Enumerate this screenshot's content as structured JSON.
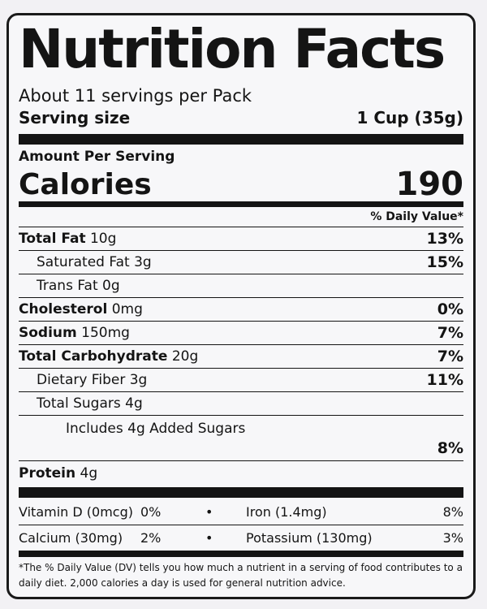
{
  "title": "Nutrition Facts",
  "servings_per_container": "About 11 servings per Pack",
  "serving_size": {
    "label": "Serving size",
    "value": "1 Cup (35g)"
  },
  "amount_per_serving": "Amount Per Serving",
  "calories": {
    "label": "Calories",
    "value": "190"
  },
  "daily_value_header": "% Daily Value*",
  "nutrients": [
    {
      "name": "Total Fat",
      "amount": "10g",
      "dv": "13%"
    },
    {
      "name": "Saturated Fat",
      "amount": "3g",
      "dv": "15%"
    },
    {
      "name": "Trans Fat",
      "amount": "0g",
      "dv": ""
    },
    {
      "name": "Cholesterol",
      "amount": "0mg",
      "dv": "0%"
    },
    {
      "name": "Sodium",
      "amount": "150mg",
      "dv": "7%"
    },
    {
      "name": "Total Carbohydrate",
      "amount": "20g",
      "dv": "7%"
    },
    {
      "name": "Dietary Fiber",
      "amount": "3g",
      "dv": "11%"
    },
    {
      "name": "Total Sugars",
      "amount": "4g",
      "dv": ""
    },
    {
      "name": "Includes 4g Added Sugars",
      "amount": "",
      "dv": "8%"
    },
    {
      "name": "Protein",
      "amount": "4g",
      "dv": ""
    }
  ],
  "vitamins": [
    {
      "left_name": "Vitamin D (0mcg)",
      "left_dv": "0%",
      "bullet": "•",
      "right_name": "Iron (1.4mg)",
      "right_dv": "8%"
    },
    {
      "left_name": "Calcium (30mg)",
      "left_dv": "2%",
      "bullet": "•",
      "right_name": "Potassium (130mg)",
      "right_dv": "3%"
    }
  ],
  "footnote": "*The % Daily Value (DV) tells you how much a nutrient in a serving of food contributes to a daily diet. 2,000 calories a day is used for general nutrition advice."
}
